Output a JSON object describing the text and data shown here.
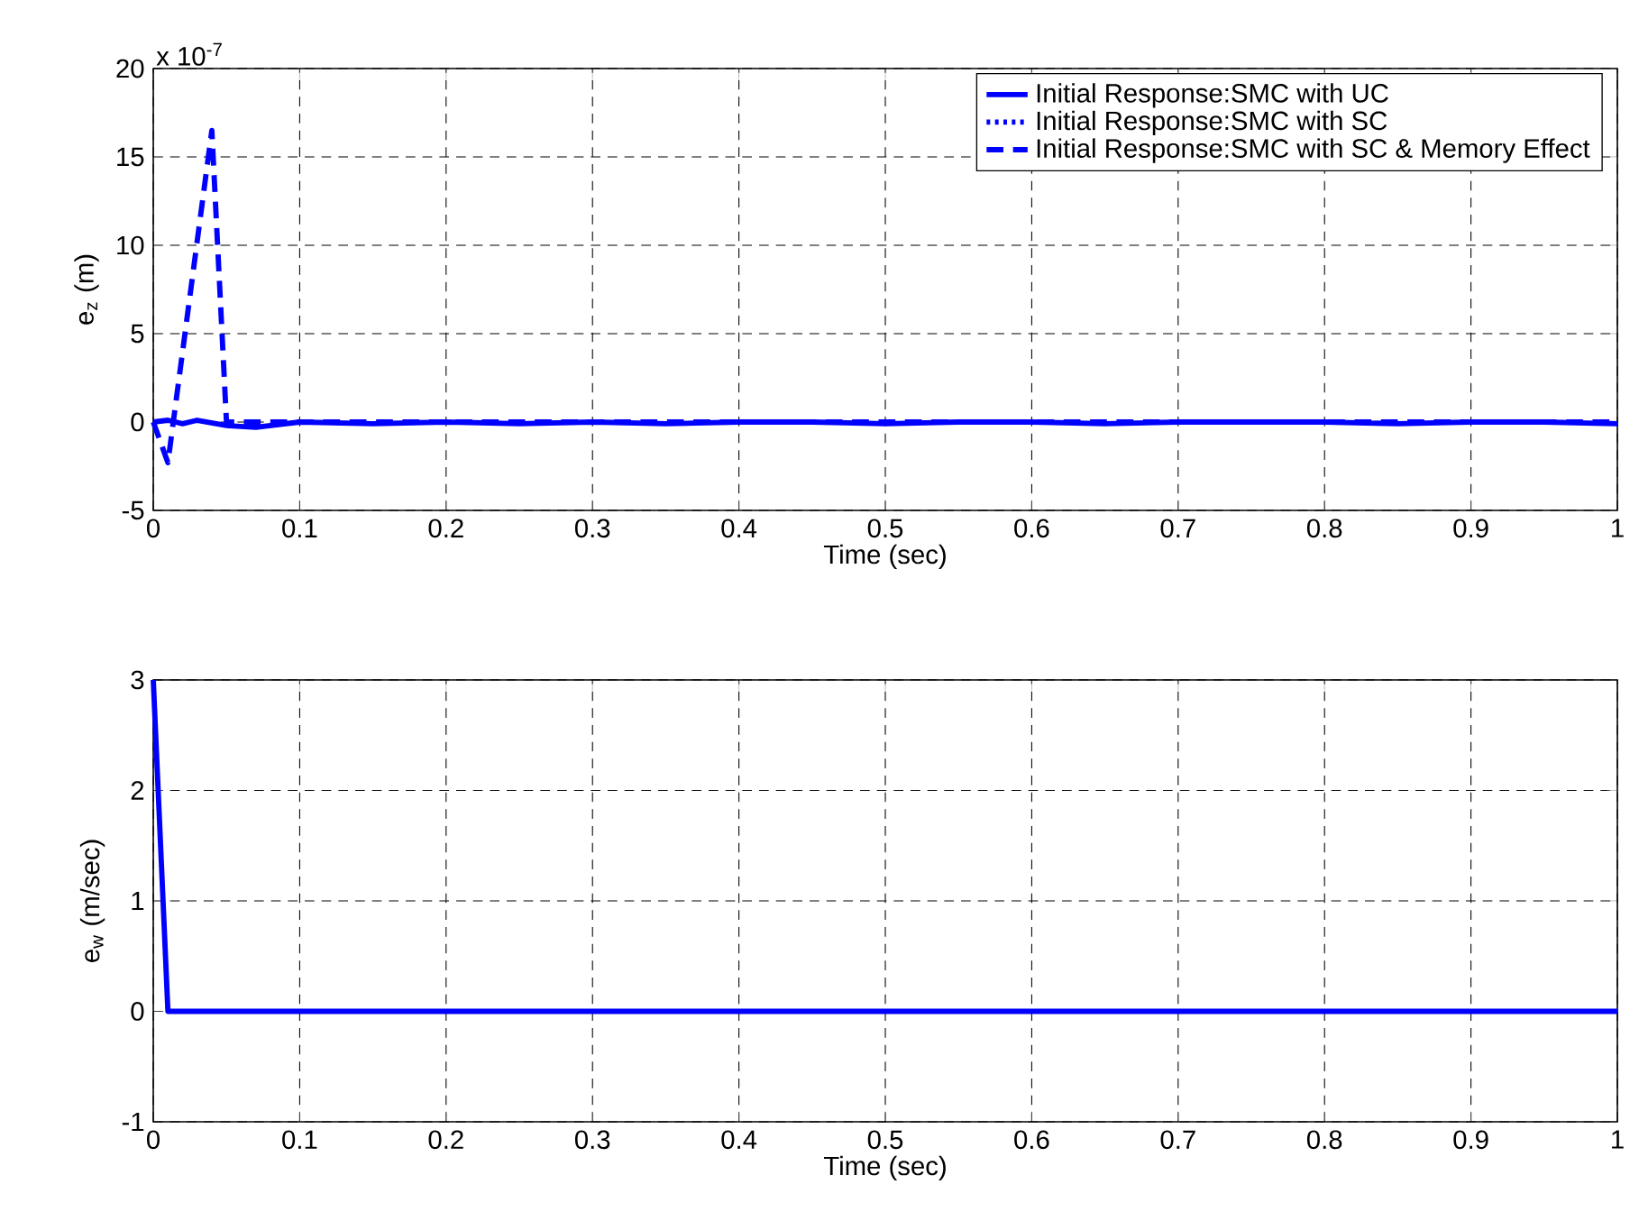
{
  "chart_data": [
    {
      "type": "line",
      "xlabel": "Time (sec)",
      "ylabel": "e$_{z}$ (m)",
      "annotations": [
        "x 10$^{-7}$"
      ],
      "xlim": [
        0,
        1
      ],
      "ylim": [
        -5,
        20
      ],
      "xticks": [
        0,
        0.1,
        0.2,
        0.3,
        0.4,
        0.5,
        0.6,
        0.7,
        0.8,
        0.9,
        1
      ],
      "yticks": [
        -5,
        0,
        5,
        10,
        15,
        20
      ],
      "grid": true,
      "legend": "top right",
      "series": [
        {
          "name": "Initial Response:SMC with UC",
          "color": "#0000ff",
          "line_style": "solid",
          "x": [
            0,
            0.01,
            0.02,
            0.03,
            0.05,
            0.07,
            0.1,
            0.15,
            0.2,
            0.25,
            0.3,
            0.35,
            0.4,
            0.45,
            0.5,
            0.55,
            0.6,
            0.65,
            0.7,
            0.75,
            0.8,
            0.85,
            0.9,
            0.95,
            1
          ],
          "values": [
            0,
            0.1,
            -0.1,
            0.1,
            -0.2,
            -0.3,
            0,
            -0.1,
            0,
            -0.1,
            0,
            -0.1,
            0,
            0,
            -0.1,
            0,
            0,
            -0.1,
            0,
            0,
            0,
            -0.1,
            0,
            0,
            -0.1
          ]
        },
        {
          "name": "Initial Response:SMC with SC",
          "color": "#0000ff",
          "line_style": "dotted",
          "values": [
            null,
            null,
            null,
            null,
            null,
            null,
            null,
            null,
            null,
            null,
            null
          ]
        },
        {
          "name": "Initial Response:SMC with SC & Memory Effect",
          "color": "#0000ff",
          "line_style": "dashed",
          "x": [
            0,
            0.01,
            0.04,
            0.05,
            0.1,
            0.2,
            0.3,
            0.4,
            0.5,
            0.6,
            0.7,
            0.8,
            0.9,
            1
          ],
          "values": [
            0,
            -2.3,
            16.5,
            0,
            0,
            0,
            0,
            0,
            0,
            0,
            0,
            0,
            0,
            0
          ]
        }
      ]
    },
    {
      "type": "line",
      "xlabel": "Time (sec)",
      "ylabel": "e$_{w}$ (m/sec)",
      "xlim": [
        0,
        1
      ],
      "ylim": [
        -1,
        3
      ],
      "xticks": [
        0,
        0.1,
        0.2,
        0.3,
        0.4,
        0.5,
        0.6,
        0.7,
        0.8,
        0.9,
        1
      ],
      "yticks": [
        -1,
        0,
        1,
        2,
        3
      ],
      "grid": true,
      "series": [
        {
          "color": "#0000ff",
          "line_style": "solid",
          "x": [
            0,
            0.01,
            0.1,
            0.2,
            0.3,
            0.4,
            0.5,
            0.6,
            0.7,
            0.8,
            0.9,
            1
          ],
          "values": [
            3,
            0,
            0,
            0,
            0,
            0,
            0,
            0,
            0,
            0,
            0,
            0
          ]
        }
      ]
    }
  ]
}
